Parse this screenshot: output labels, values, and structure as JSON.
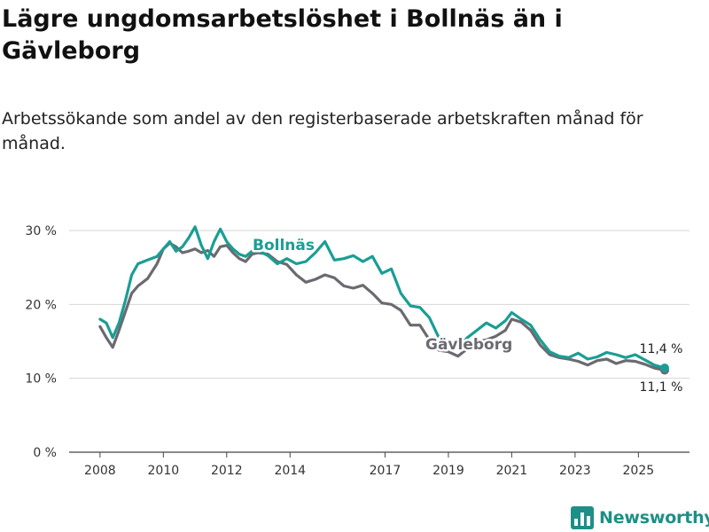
{
  "header": {
    "title": "Lägre ungdomsarbetslöshet i Bollnäs än i Gävleborg",
    "subtitle": "Arbetssökande som andel av den registerbaserade arbetskraften månad för månad."
  },
  "brand": {
    "name": "Newsworthy",
    "icon": "bar-chart-icon",
    "color": "#1d8f87"
  },
  "chart_data": {
    "type": "line",
    "title": "Lägre ungdomsarbetslöshet i Bollnäs än i Gävleborg",
    "xlabel": "",
    "ylabel": "",
    "ylim": [
      0,
      30
    ],
    "xlim": [
      2007.92,
      2025.83
    ],
    "yticks": [
      0,
      10,
      20,
      30
    ],
    "ytick_labels": [
      "0 %",
      "10 %",
      "20 %",
      "30 %"
    ],
    "xticks": [
      2008,
      2010,
      2012,
      2014,
      2017,
      2019,
      2021,
      2023,
      2025
    ],
    "xtick_labels": [
      "2008",
      "2010",
      "2012",
      "2014",
      "2017",
      "2019",
      "2021",
      "2023",
      "2025"
    ],
    "grid": true,
    "series": [
      {
        "name": "Gävleborg",
        "color": "#6b6a70",
        "label": "Gävleborg",
        "end_label": "11,1 %",
        "x": [
          2008.0,
          2008.2,
          2008.4,
          2008.6,
          2008.8,
          2009.0,
          2009.2,
          2009.5,
          2009.8,
          2010.0,
          2010.2,
          2010.4,
          2010.6,
          2010.8,
          2011.0,
          2011.2,
          2011.4,
          2011.6,
          2011.8,
          2012.0,
          2012.2,
          2012.4,
          2012.6,
          2012.8,
          2013.0,
          2013.3,
          2013.6,
          2013.9,
          2014.2,
          2014.5,
          2014.8,
          2015.1,
          2015.4,
          2015.7,
          2016.0,
          2016.3,
          2016.6,
          2016.9,
          2017.2,
          2017.5,
          2017.8,
          2018.1,
          2018.4,
          2018.7,
          2019.0,
          2019.3,
          2019.6,
          2019.9,
          2020.2,
          2020.5,
          2020.8,
          2021.0,
          2021.3,
          2021.6,
          2021.9,
          2022.2,
          2022.5,
          2022.8,
          2023.1,
          2023.4,
          2023.7,
          2024.0,
          2024.3,
          2024.6,
          2024.9,
          2025.2,
          2025.5,
          2025.83
        ],
        "values": [
          17.0,
          15.5,
          14.2,
          16.5,
          19.0,
          21.5,
          22.5,
          23.5,
          25.5,
          27.5,
          28.3,
          27.8,
          27.0,
          27.2,
          27.5,
          27.0,
          27.3,
          26.5,
          27.8,
          28.0,
          27.0,
          26.2,
          25.8,
          26.8,
          27.0,
          26.8,
          25.8,
          25.4,
          24.0,
          23.0,
          23.4,
          24.0,
          23.6,
          22.5,
          22.2,
          22.6,
          21.5,
          20.2,
          20.0,
          19.2,
          17.2,
          17.2,
          15.2,
          13.8,
          13.6,
          13.0,
          14.0,
          15.0,
          15.2,
          15.7,
          16.5,
          18.0,
          17.6,
          16.5,
          14.5,
          13.2,
          12.8,
          12.6,
          12.3,
          11.8,
          12.4,
          12.6,
          12.0,
          12.4,
          12.3,
          11.9,
          11.4,
          11.1
        ]
      },
      {
        "name": "Bollnäs",
        "color": "#1a9e94",
        "label": "Bollnäs",
        "end_label": "11,4 %",
        "x": [
          2008.0,
          2008.2,
          2008.4,
          2008.6,
          2008.8,
          2009.0,
          2009.2,
          2009.5,
          2009.8,
          2010.0,
          2010.2,
          2010.4,
          2010.6,
          2010.8,
          2011.0,
          2011.2,
          2011.4,
          2011.6,
          2011.8,
          2012.0,
          2012.2,
          2012.4,
          2012.6,
          2012.8,
          2013.0,
          2013.3,
          2013.6,
          2013.9,
          2014.2,
          2014.5,
          2014.8,
          2015.1,
          2015.4,
          2015.7,
          2016.0,
          2016.3,
          2016.6,
          2016.9,
          2017.2,
          2017.5,
          2017.8,
          2018.1,
          2018.4,
          2018.7,
          2019.0,
          2019.3,
          2019.6,
          2019.9,
          2020.2,
          2020.5,
          2020.8,
          2021.0,
          2021.3,
          2021.6,
          2021.9,
          2022.2,
          2022.5,
          2022.8,
          2023.1,
          2023.4,
          2023.7,
          2024.0,
          2024.3,
          2024.6,
          2024.9,
          2025.2,
          2025.5,
          2025.83
        ],
        "values": [
          18.0,
          17.5,
          15.5,
          17.5,
          20.5,
          24.0,
          25.5,
          26.0,
          26.5,
          27.5,
          28.5,
          27.2,
          27.8,
          29.0,
          30.5,
          28.0,
          26.2,
          28.5,
          30.2,
          28.5,
          27.5,
          26.8,
          26.5,
          27.2,
          27.3,
          26.6,
          25.5,
          26.2,
          25.5,
          25.8,
          27.0,
          28.5,
          26.0,
          26.2,
          26.6,
          25.8,
          26.5,
          24.2,
          24.8,
          21.5,
          19.8,
          19.6,
          18.2,
          15.5,
          15.0,
          14.2,
          15.5,
          16.5,
          17.5,
          16.8,
          17.8,
          18.9,
          18.0,
          17.2,
          15.2,
          13.6,
          13.0,
          12.8,
          13.4,
          12.6,
          12.9,
          13.5,
          13.2,
          12.8,
          13.2,
          12.5,
          11.8,
          11.4
        ]
      }
    ]
  }
}
